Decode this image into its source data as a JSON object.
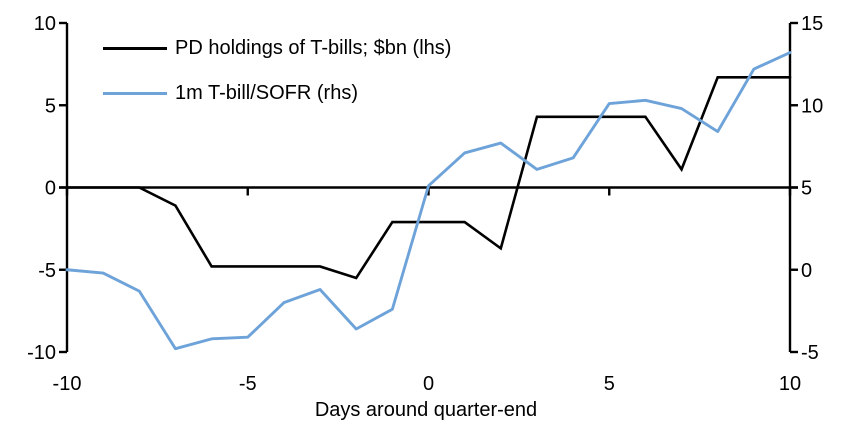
{
  "chart_data": {
    "type": "line",
    "title": "",
    "xlabel": "Days around quarter-end",
    "grid": false,
    "legend_position": "top-left",
    "x_axis": {
      "min": -10,
      "max": 10,
      "ticks": [
        -10,
        -5,
        0,
        5,
        10
      ]
    },
    "left_axis": {
      "min": -10,
      "max": 10,
      "ticks": [
        -10,
        -5,
        0,
        5,
        10
      ]
    },
    "right_axis": {
      "min": -5,
      "max": 15,
      "ticks": [
        -5,
        0,
        5,
        10,
        15
      ]
    },
    "x": [
      -10,
      -9,
      -8,
      -7,
      -6,
      -5,
      -4,
      -3,
      -2,
      -1,
      0,
      1,
      2,
      3,
      4,
      5,
      6,
      7,
      8,
      9,
      10
    ],
    "series": [
      {
        "name": "PD holdings of T-bills; $bn (lhs)",
        "axis": "left",
        "color": "#000000",
        "values": [
          0,
          0,
          0,
          -1.1,
          -4.8,
          -4.8,
          -4.8,
          -4.8,
          -5.5,
          -2.1,
          -2.1,
          -2.1,
          -3.7,
          4.3,
          4.3,
          4.3,
          4.3,
          1.1,
          6.7,
          6.7,
          6.7
        ]
      },
      {
        "name": "1m T-bill/SOFR (rhs)",
        "axis": "right",
        "color": "#6EA3D9",
        "values": [
          0.0,
          -0.2,
          -1.3,
          -4.8,
          -4.2,
          -4.1,
          -2.0,
          -1.2,
          -3.6,
          -2.4,
          5.1,
          7.1,
          7.7,
          6.1,
          6.8,
          10.1,
          10.3,
          9.8,
          8.4,
          12.2,
          13.2
        ]
      }
    ]
  },
  "colors": {
    "background": "#FFFFFF",
    "axis": "#000000",
    "series1": "#000000",
    "series2": "#6EA3D9"
  }
}
